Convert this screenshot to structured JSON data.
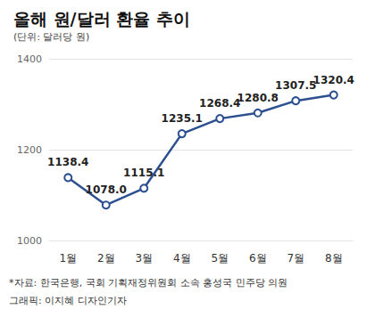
{
  "chart_data": {
    "type": "line",
    "title": "올해 원/달러 환율 추이",
    "subtitle": "(단위: 달러당 원)",
    "annotations": [
      "*자료: 한국은행, 국회 기획재정위원회 소속 홍성국 민주당 의원",
      "그래픽: 이지혜 디자인기자"
    ],
    "categories": [
      "1월",
      "2월",
      "3월",
      "4월",
      "5월",
      "6월",
      "7월",
      "8월"
    ],
    "values": [
      1138.4,
      1078.0,
      1115.1,
      1235.1,
      1268.4,
      1280.8,
      1307.5,
      1320.4
    ],
    "value_labels": [
      "1138.4",
      "1078.0",
      "1115.1",
      "1235.1",
      "1268.4",
      "1280.8",
      "1307.5",
      "1320.4"
    ],
    "color": "#2c4f8f",
    "marker": "circle",
    "ylim": [
      1000,
      1400
    ],
    "yticks": [
      1000,
      1200,
      1400
    ],
    "grid": true,
    "data_labels": true
  }
}
